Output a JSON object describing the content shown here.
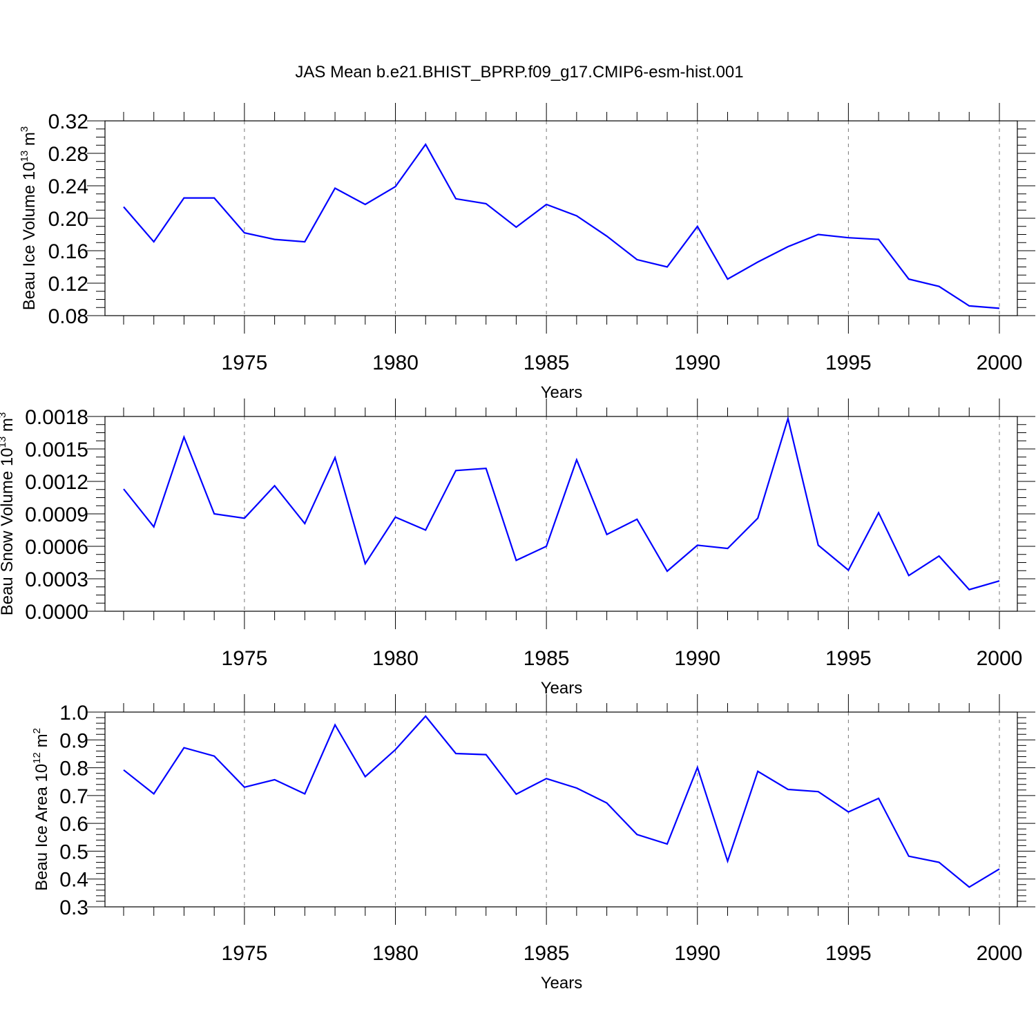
{
  "page_title": "JAS Mean b.e21.BHIST_BPRP.f09_g17.CMIP6-esm-hist.001",
  "colors": {
    "series": "#0000ff",
    "frame": "#000000",
    "grid": "#777777"
  },
  "chart_data": [
    {
      "type": "line",
      "ylabel": {
        "text": "Beau Ice Volume 10",
        "exp": "13",
        "unit": " m",
        "unit_exp": "3"
      },
      "xlabel": "Years",
      "xlim": [
        1971,
        2000
      ],
      "ylim": [
        0.08,
        0.32
      ],
      "yticks": [
        "0.08",
        "0.12",
        "0.16",
        "0.20",
        "0.24",
        "0.28",
        "0.32"
      ],
      "xticks": [
        "1975",
        "1980",
        "1985",
        "1990",
        "1995",
        "2000"
      ],
      "grid": "vertical dashed at labeled years",
      "series": [
        {
          "x": [
            1971,
            1972,
            1973,
            1974,
            1975,
            1976,
            1977,
            1978,
            1979,
            1980,
            1981,
            1982,
            1983,
            1984,
            1985,
            1986,
            1987,
            1988,
            1989,
            1990,
            1991,
            1992,
            1993,
            1994,
            1995,
            1996,
            1997,
            1998,
            1999,
            2000
          ],
          "values": [
            0.214,
            0.171,
            0.225,
            0.225,
            0.182,
            0.174,
            0.171,
            0.237,
            0.217,
            0.239,
            0.291,
            0.224,
            0.218,
            0.189,
            0.217,
            0.203,
            0.178,
            0.149,
            0.14,
            0.19,
            0.125,
            0.146,
            0.165,
            0.18,
            0.176,
            0.174,
            0.125,
            0.116,
            0.092,
            0.089
          ]
        }
      ]
    },
    {
      "type": "line",
      "ylabel": {
        "text": "Beau Snow Volume 10",
        "exp": "13",
        "unit": " m",
        "unit_exp": "3"
      },
      "xlabel": "Years",
      "xlim": [
        1971,
        2000
      ],
      "ylim": [
        0.0,
        0.0018
      ],
      "yticks": [
        "0.0000",
        "0.0003",
        "0.0006",
        "0.0009",
        "0.0012",
        "0.0015",
        "0.0018"
      ],
      "xticks": [
        "1975",
        "1980",
        "1985",
        "1990",
        "1995",
        "2000"
      ],
      "grid": "vertical dashed at labeled years",
      "series": [
        {
          "x": [
            1971,
            1972,
            1973,
            1974,
            1975,
            1976,
            1977,
            1978,
            1979,
            1980,
            1981,
            1982,
            1983,
            1984,
            1985,
            1986,
            1987,
            1988,
            1989,
            1990,
            1991,
            1992,
            1993,
            1994,
            1995,
            1996,
            1997,
            1998,
            1999,
            2000
          ],
          "values": [
            0.00113,
            0.00078,
            0.00161,
            0.0009,
            0.00086,
            0.00116,
            0.00081,
            0.00142,
            0.00044,
            0.00087,
            0.00075,
            0.0013,
            0.00132,
            0.00047,
            0.0006,
            0.0014,
            0.00071,
            0.00085,
            0.00037,
            0.00061,
            0.00058,
            0.00086,
            0.00178,
            0.00061,
            0.00038,
            0.00091,
            0.00033,
            0.00051,
            0.0002,
            0.00028
          ]
        }
      ]
    },
    {
      "type": "line",
      "ylabel": {
        "text": "Beau Ice Area 10",
        "exp": "12",
        "unit": " m",
        "unit_exp": "2"
      },
      "xlabel": "Years",
      "xlim": [
        1971,
        2000
      ],
      "ylim": [
        0.3,
        1.0
      ],
      "yticks": [
        "0.3",
        "0.4",
        "0.5",
        "0.6",
        "0.7",
        "0.8",
        "0.9",
        "1.0"
      ],
      "xticks": [
        "1975",
        "1980",
        "1985",
        "1990",
        "1995",
        "2000"
      ],
      "grid": "vertical dashed at labeled years",
      "series": [
        {
          "x": [
            1971,
            1972,
            1973,
            1974,
            1975,
            1976,
            1977,
            1978,
            1979,
            1980,
            1981,
            1982,
            1983,
            1984,
            1985,
            1986,
            1987,
            1988,
            1989,
            1990,
            1991,
            1992,
            1993,
            1994,
            1995,
            1996,
            1997,
            1998,
            1999,
            2000
          ],
          "values": [
            0.792,
            0.706,
            0.872,
            0.842,
            0.73,
            0.757,
            0.706,
            0.954,
            0.768,
            0.865,
            0.985,
            0.851,
            0.847,
            0.705,
            0.761,
            0.727,
            0.673,
            0.56,
            0.526,
            0.801,
            0.464,
            0.787,
            0.722,
            0.714,
            0.641,
            0.69,
            0.482,
            0.46,
            0.371,
            0.436
          ]
        }
      ]
    }
  ]
}
